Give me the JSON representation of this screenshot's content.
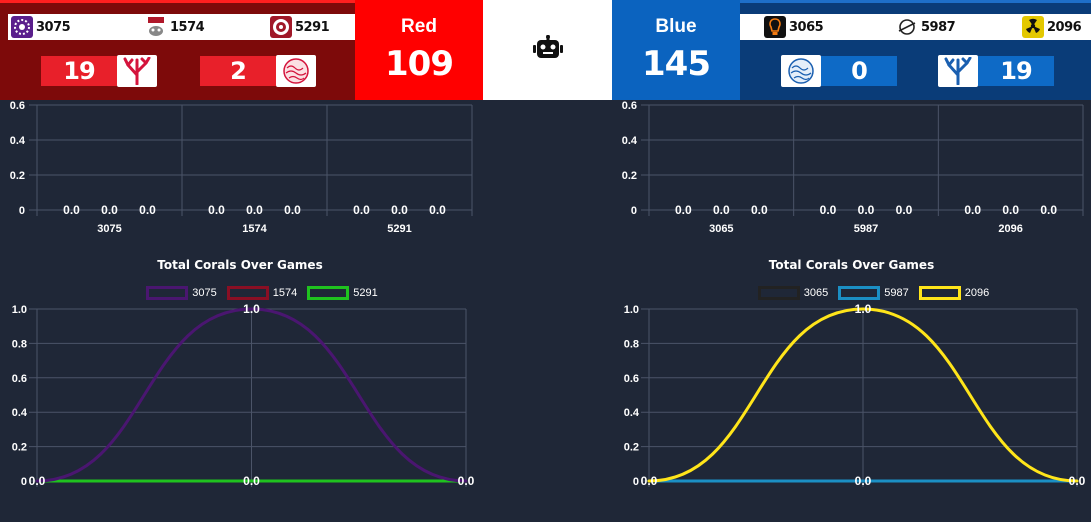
{
  "red": {
    "alliance_name": "Red",
    "score": "109",
    "teams": [
      {
        "number": "3075",
        "logo_icon": "team-3075-logo-icon",
        "logo_color": "#5a1f8c"
      },
      {
        "number": "1574",
        "logo_icon": "team-1574-logo-icon",
        "logo_color": "#b0182a"
      },
      {
        "number": "5291",
        "logo_icon": "team-5291-logo-icon",
        "logo_color": "#a01828"
      }
    ],
    "coral_counts": [
      {
        "count": "19",
        "icon": "red-coral-branch-icon"
      },
      {
        "count": "2",
        "icon": "red-coral-ball-icon"
      }
    ],
    "colors": {
      "primary": "#ff0000",
      "dark": "#7d0a0a",
      "box": "#e8202a"
    }
  },
  "blue": {
    "alliance_name": "Blue",
    "score": "145",
    "teams": [
      {
        "number": "3065",
        "logo_icon": "team-3065-logo-icon",
        "logo_color": "#f57c12"
      },
      {
        "number": "5987",
        "logo_icon": "team-5987-logo-icon",
        "logo_color": "#222222"
      },
      {
        "number": "2096",
        "logo_icon": "team-2096-logo-icon",
        "logo_color": "#e3c800"
      }
    ],
    "coral_counts": [
      {
        "count": "0",
        "icon": "blue-coral-ball-icon"
      },
      {
        "count": "19",
        "icon": "blue-coral-branch-icon"
      }
    ],
    "colors": {
      "primary": "#0b63bf",
      "dark": "#0a3c78",
      "box": "#0e6ac6"
    }
  },
  "center": {
    "icon": "robot-icon"
  },
  "chart_data": [
    {
      "id": "red-bar",
      "type": "bar",
      "categories": [
        "3075",
        "1574",
        "5291"
      ],
      "series_values": [
        [
          0.0,
          0.0,
          0.0
        ],
        [
          0.0,
          0.0,
          0.0
        ],
        [
          0.0,
          0.0,
          0.0
        ]
      ],
      "value_labels": [
        "0.0",
        "0.0",
        "0.0"
      ],
      "y_ticks": [
        "0.6",
        "0.4",
        "0.2",
        "0"
      ],
      "ylim": [
        0,
        0.6
      ],
      "grid": true
    },
    {
      "id": "blue-bar",
      "type": "bar",
      "categories": [
        "3065",
        "5987",
        "2096"
      ],
      "series_values": [
        [
          0.0,
          0.0,
          0.0
        ],
        [
          0.0,
          0.0,
          0.0
        ],
        [
          0.0,
          0.0,
          0.0
        ]
      ],
      "value_labels": [
        "0.0",
        "0.0",
        "0.0"
      ],
      "y_ticks": [
        "0.6",
        "0.4",
        "0.2",
        "0"
      ],
      "ylim": [
        0,
        0.6
      ],
      "grid": true
    },
    {
      "id": "red-line",
      "type": "line",
      "title": "Total Corals Over Games",
      "x": [
        0,
        1,
        2
      ],
      "y_ticks": [
        "1.0",
        "0.8",
        "0.6",
        "0.4",
        "0.2",
        "0"
      ],
      "ylim": [
        0,
        1.0
      ],
      "grid": true,
      "legend_placement": "top-center",
      "series": [
        {
          "name": "3075",
          "color": "#4a1670",
          "values": [
            0.0,
            1.0,
            0.0
          ]
        },
        {
          "name": "1574",
          "color": "#8a0f24",
          "values": [
            0.0,
            0.0,
            0.0
          ]
        },
        {
          "name": "5291",
          "color": "#1fc21f",
          "values": [
            0.0,
            0.0,
            0.0
          ]
        }
      ],
      "point_labels": [
        "0.0",
        "1.0",
        "0.0"
      ],
      "baseline_labels": [
        "0.0",
        "0.0",
        "0.0"
      ]
    },
    {
      "id": "blue-line",
      "type": "line",
      "title": "Total Corals Over Games",
      "x": [
        0,
        1,
        2
      ],
      "y_ticks": [
        "1.0",
        "0.8",
        "0.6",
        "0.4",
        "0.2",
        "0"
      ],
      "ylim": [
        0,
        1.0
      ],
      "grid": true,
      "legend_placement": "top-center",
      "series": [
        {
          "name": "3065",
          "color": "#222222",
          "values": [
            0.0,
            0.0,
            0.0
          ]
        },
        {
          "name": "5987",
          "color": "#1b8fc4",
          "values": [
            0.0,
            0.0,
            0.0
          ]
        },
        {
          "name": "2096",
          "color": "#ffe51a",
          "values": [
            0.0,
            1.0,
            0.0
          ]
        }
      ],
      "point_labels": [
        "0.0",
        "1.0",
        "0.0"
      ],
      "baseline_labels": [
        "0.0",
        "0.0",
        "0.0"
      ]
    }
  ]
}
